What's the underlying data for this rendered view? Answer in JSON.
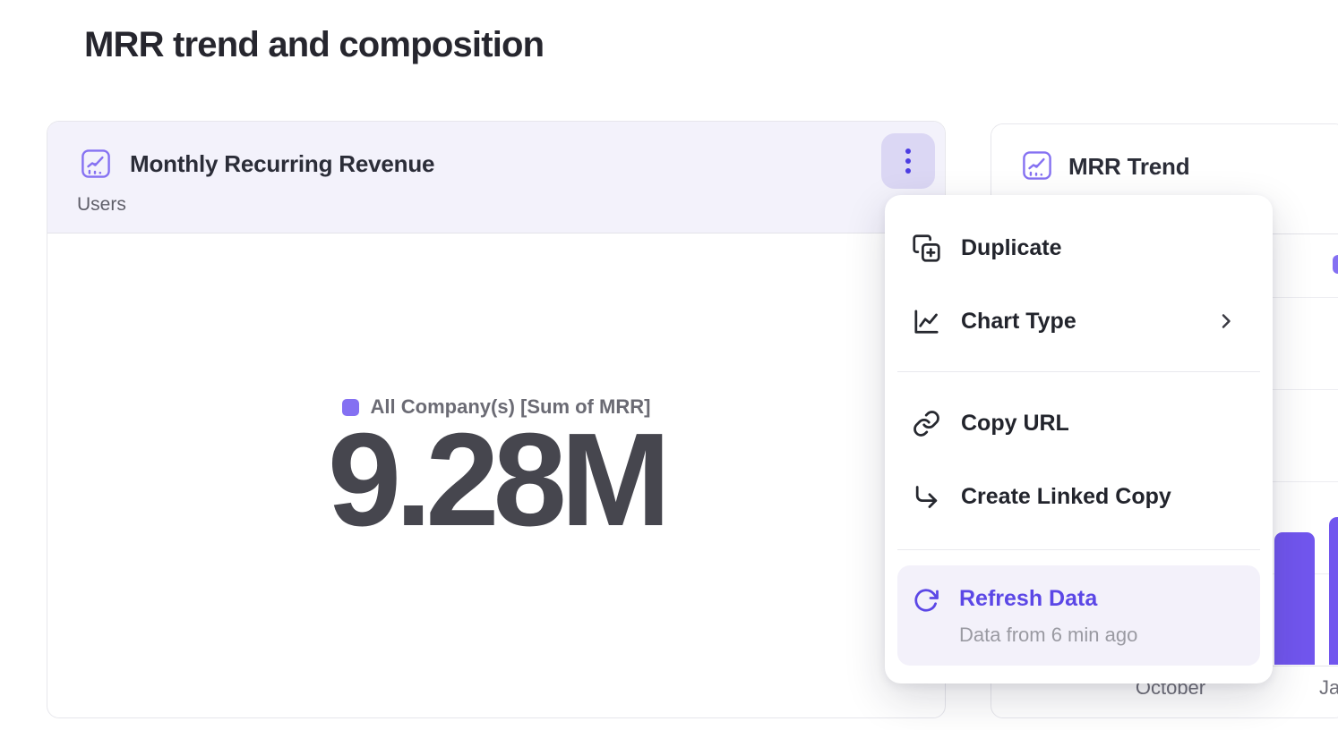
{
  "page": {
    "title": "MRR trend and composition"
  },
  "colors": {
    "accent": "#5b47e6",
    "bar": "#7156ee",
    "legend_swatch": "#8470f2",
    "card_header_bg": "#f3f2fb",
    "menu_highlight_bg": "#f3f1fa"
  },
  "mrr_card": {
    "icon": "combo-chart-icon",
    "title": "Monthly Recurring Revenue",
    "subtitle": "Users",
    "menu_button": "kebab-menu",
    "legend_label": "All Company(s) [Sum of MRR]",
    "value": "9.28M"
  },
  "trend_card": {
    "icon": "combo-chart-icon",
    "title": "MRR Trend",
    "x_labels": [
      "October",
      "Ja"
    ]
  },
  "context_menu": {
    "items": [
      {
        "label": "Duplicate",
        "icon": "duplicate-icon"
      },
      {
        "label": "Chart Type",
        "icon": "chart-type-icon",
        "has_submenu": true
      },
      {
        "label": "Copy URL",
        "icon": "link-icon"
      },
      {
        "label": "Create Linked Copy",
        "icon": "corner-down-right-icon"
      },
      {
        "label": "Refresh Data",
        "sublabel": "Data from 6 min ago",
        "icon": "refresh-icon",
        "highlighted": true
      }
    ]
  },
  "chart_data": [
    {
      "type": "table",
      "title": "Monthly Recurring Revenue",
      "subtitle": "Users",
      "series": "All Company(s) [Sum of MRR]",
      "value": "9.28M"
    },
    {
      "type": "bar",
      "title": "MRR Trend",
      "categories_visible": [
        "October",
        "Ja"
      ],
      "bars_visible": [
        {
          "height_frac": 0.36
        },
        {
          "height_frac": 0.4
        }
      ],
      "ylabel": "",
      "grid": true,
      "legend_position": "top-right"
    }
  ]
}
